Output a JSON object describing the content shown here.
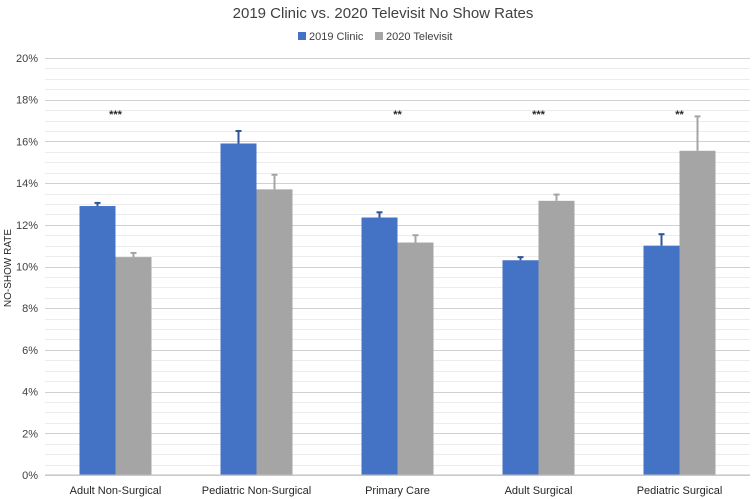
{
  "chart_data": {
    "type": "bar",
    "title": "2019 Clinic vs. 2020 Televisit No Show Rates",
    "ylabel": "NO-SHOW RATE",
    "xlabel": "",
    "ylim": [
      0,
      20
    ],
    "yticks": [
      "0%",
      "2%",
      "4%",
      "6%",
      "8%",
      "10%",
      "12%",
      "14%",
      "16%",
      "18%",
      "20%"
    ],
    "categories": [
      "Adult Non-Surgical",
      "Pediatric Non-Surgical",
      "Primary Care",
      "Adult Surgical",
      "Pediatric Surgical"
    ],
    "series": [
      {
        "name": "2019 Clinic",
        "color": "#4472c4",
        "values": [
          12.9,
          15.9,
          12.35,
          10.3,
          11.0
        ],
        "errors": [
          0.15,
          0.6,
          0.25,
          0.15,
          0.55
        ]
      },
      {
        "name": "2020 Televisit",
        "color": "#a5a5a5",
        "values": [
          10.45,
          13.7,
          11.15,
          13.15,
          15.55
        ],
        "errors": [
          0.2,
          0.7,
          0.35,
          0.3,
          1.65
        ]
      }
    ],
    "significance": [
      "***",
      "",
      "**",
      "***",
      "**"
    ],
    "legend_position": "top",
    "grid": true
  }
}
